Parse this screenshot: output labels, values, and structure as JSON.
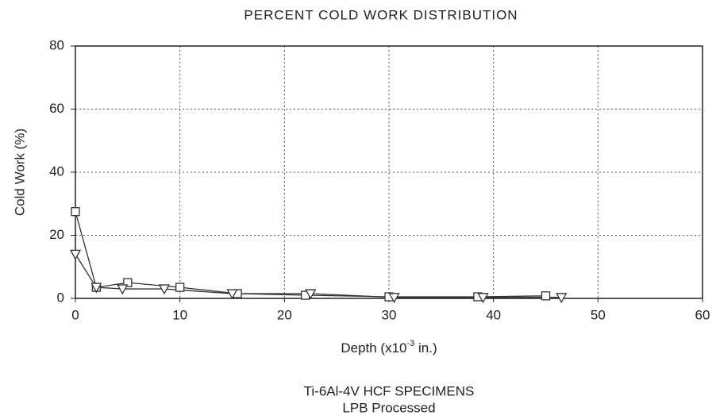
{
  "chart_data": {
    "type": "line",
    "title": "PERCENT COLD WORK DISTRIBUTION",
    "ylabel": "Cold Work (%)",
    "xlabel_parts": [
      "Depth (x10",
      "-3",
      " in.)"
    ],
    "notes": [
      "Ti-6Al-4V HCF SPECIMENS",
      "LPB Processed"
    ],
    "xlim": [
      0,
      60
    ],
    "xticks": [
      0,
      10,
      20,
      30,
      40,
      50,
      60
    ],
    "ylim": [
      0,
      80
    ],
    "yticks": [
      0,
      20,
      40,
      60,
      80
    ],
    "grid": true,
    "series": [
      {
        "color": "#333333",
        "marker": "square",
        "x": [
          0,
          2,
          5,
          10,
          15.5,
          22,
          30,
          38.5,
          45
        ],
        "values": [
          27.5,
          3.5,
          5,
          3.5,
          1.5,
          1,
          0.5,
          0.5,
          0.8
        ]
      },
      {
        "color": "#333333",
        "marker": "triangle-down",
        "x": [
          0,
          2,
          4.5,
          8.5,
          15,
          22.5,
          30.5,
          39,
          46.5
        ],
        "values": [
          14,
          3.5,
          3,
          3,
          1.5,
          1.5,
          0.3,
          0.3,
          0.3
        ]
      }
    ]
  }
}
